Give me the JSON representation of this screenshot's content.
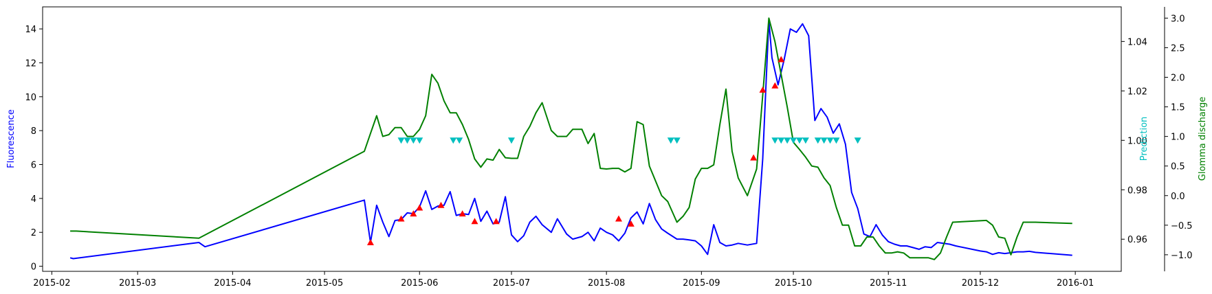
{
  "chart_data": {
    "type": "line",
    "xlabel": "",
    "x_ticks": [
      "2015-02",
      "2015-03",
      "2015-04",
      "2015-05",
      "2015-06",
      "2015-07",
      "2015-08",
      "2015-09",
      "2015-10",
      "2015-11",
      "2015-12",
      "2016-01"
    ],
    "xlim": [
      "2015-01-29",
      "2016-01-16"
    ],
    "axes": {
      "left": {
        "label": "Fluorescence",
        "color": "#0000ff",
        "lim": [
          -0.3,
          15.3
        ],
        "ticks": [
          0,
          2,
          4,
          6,
          8,
          10,
          12,
          14
        ]
      },
      "right1": {
        "label": "Prediction",
        "color": "#00bfbf",
        "lim": [
          0.947,
          1.054
        ],
        "ticks": [
          0.96,
          0.98,
          1.0,
          1.02,
          1.04
        ],
        "tick_labels": [
          "0.96",
          "0.98",
          "1.00",
          "1.02",
          "1.04"
        ]
      },
      "right2": {
        "label": "Glomma discharge",
        "color": "#008000",
        "lim": [
          -1.28,
          3.19
        ],
        "ticks": [
          -1.0,
          -0.5,
          0.0,
          0.5,
          1.0,
          1.5,
          2.0,
          2.5,
          3.0
        ],
        "tick_labels": [
          "−1.0",
          "−0.5",
          "0.0",
          "0.5",
          "1.0",
          "1.5",
          "2.0",
          "2.5",
          "3.0"
        ]
      }
    },
    "series": [
      {
        "axis": "left",
        "color": "#0000ff",
        "style": "line",
        "x": [
          "2015-02-07",
          "2015-02-08",
          "2015-03-21",
          "2015-03-23",
          "2015-05-14",
          "2015-05-16",
          "2015-05-18",
          "2015-05-20",
          "2015-05-22",
          "2015-05-24",
          "2015-05-26",
          "2015-05-28",
          "2015-05-30",
          "2015-06-01",
          "2015-06-03",
          "2015-06-05",
          "2015-06-07",
          "2015-06-09",
          "2015-06-11",
          "2015-06-13",
          "2015-06-15",
          "2015-06-17",
          "2015-06-19",
          "2015-06-21",
          "2015-06-23",
          "2015-06-25",
          "2015-06-27",
          "2015-06-29",
          "2015-07-01",
          "2015-07-03",
          "2015-07-05",
          "2015-07-07",
          "2015-07-09",
          "2015-07-11",
          "2015-07-14",
          "2015-07-16",
          "2015-07-19",
          "2015-07-21",
          "2015-07-24",
          "2015-07-26",
          "2015-07-28",
          "2015-07-30",
          "2015-08-01",
          "2015-08-03",
          "2015-08-05",
          "2015-08-07",
          "2015-08-09",
          "2015-08-11",
          "2015-08-13",
          "2015-08-15",
          "2015-08-17",
          "2015-08-19",
          "2015-08-21",
          "2015-08-24",
          "2015-08-26",
          "2015-08-28",
          "2015-08-30",
          "2015-09-01",
          "2015-09-03",
          "2015-09-05",
          "2015-09-07",
          "2015-09-09",
          "2015-09-11",
          "2015-09-13",
          "2015-09-16",
          "2015-09-19",
          "2015-09-21",
          "2015-09-22",
          "2015-09-23",
          "2015-09-24",
          "2015-09-26",
          "2015-09-28",
          "2015-09-30",
          "2015-10-02",
          "2015-10-04",
          "2015-10-06",
          "2015-10-08",
          "2015-10-10",
          "2015-10-12",
          "2015-10-14",
          "2015-10-16",
          "2015-10-18",
          "2015-10-20",
          "2015-10-22",
          "2015-10-24",
          "2015-10-26",
          "2015-10-28",
          "2015-10-30",
          "2015-11-01",
          "2015-11-03",
          "2015-11-05",
          "2015-11-07",
          "2015-11-09",
          "2015-11-11",
          "2015-11-13",
          "2015-11-15",
          "2015-11-17",
          "2015-11-19",
          "2015-11-21",
          "2015-11-23",
          "2015-12-01",
          "2015-12-03",
          "2015-12-05",
          "2015-12-07",
          "2015-12-09",
          "2015-12-11",
          "2015-12-13",
          "2015-12-15",
          "2015-12-17",
          "2015-12-19",
          "2015-12-31"
        ],
        "y": [
          0.5,
          0.45,
          1.4,
          1.15,
          3.9,
          1.4,
          3.6,
          2.6,
          1.75,
          2.7,
          2.75,
          3.15,
          3.1,
          3.5,
          4.45,
          3.35,
          3.55,
          3.6,
          4.4,
          3.0,
          3.1,
          3.05,
          4.0,
          2.65,
          3.25,
          2.5,
          2.6,
          4.1,
          1.85,
          1.45,
          1.8,
          2.6,
          2.95,
          2.45,
          2.0,
          2.8,
          1.9,
          1.6,
          1.75,
          2.0,
          1.5,
          2.25,
          2.0,
          1.85,
          1.5,
          1.95,
          2.85,
          3.2,
          2.5,
          3.7,
          2.75,
          2.2,
          1.95,
          1.6,
          1.6,
          1.55,
          1.5,
          1.2,
          0.7,
          2.45,
          1.4,
          1.2,
          1.25,
          1.35,
          1.25,
          1.35,
          6.35,
          10.4,
          14.5,
          12.3,
          10.7,
          12.2,
          14.0,
          13.8,
          14.3,
          13.6,
          8.6,
          9.3,
          8.8,
          7.85,
          8.4,
          7.2,
          4.35,
          3.4,
          1.9,
          1.75,
          2.45,
          1.85,
          1.45,
          1.3,
          1.2,
          1.2,
          1.1,
          1.0,
          1.15,
          1.1,
          1.4,
          1.35,
          1.3,
          1.2,
          0.9,
          0.85,
          0.7,
          0.8,
          0.75,
          0.8,
          0.85,
          0.85,
          0.88,
          0.82,
          0.65
        ]
      },
      {
        "axis": "right2",
        "color": "#008000",
        "style": "line",
        "x": [
          "2015-02-07",
          "2015-02-09",
          "2015-03-21",
          "2015-05-14",
          "2015-05-16",
          "2015-05-18",
          "2015-05-20",
          "2015-05-22",
          "2015-05-24",
          "2015-05-26",
          "2015-05-28",
          "2015-05-30",
          "2015-06-01",
          "2015-06-03",
          "2015-06-05",
          "2015-06-07",
          "2015-06-09",
          "2015-06-11",
          "2015-06-13",
          "2015-06-15",
          "2015-06-17",
          "2015-06-19",
          "2015-06-21",
          "2015-06-23",
          "2015-06-25",
          "2015-06-27",
          "2015-06-29",
          "2015-07-01",
          "2015-07-03",
          "2015-07-05",
          "2015-07-07",
          "2015-07-09",
          "2015-07-11",
          "2015-07-14",
          "2015-07-16",
          "2015-07-19",
          "2015-07-21",
          "2015-07-24",
          "2015-07-26",
          "2015-07-28",
          "2015-07-30",
          "2015-08-01",
          "2015-08-03",
          "2015-08-05",
          "2015-08-07",
          "2015-08-09",
          "2015-08-11",
          "2015-08-13",
          "2015-08-15",
          "2015-08-17",
          "2015-08-19",
          "2015-08-21",
          "2015-08-24",
          "2015-08-26",
          "2015-08-28",
          "2015-08-30",
          "2015-09-01",
          "2015-09-03",
          "2015-09-05",
          "2015-09-07",
          "2015-09-09",
          "2015-09-11",
          "2015-09-13",
          "2015-09-16",
          "2015-09-19",
          "2015-09-21",
          "2015-09-23",
          "2015-09-25",
          "2015-09-27",
          "2015-09-29",
          "2015-10-01",
          "2015-10-03",
          "2015-10-05",
          "2015-10-07",
          "2015-10-09",
          "2015-10-11",
          "2015-10-13",
          "2015-10-15",
          "2015-10-17",
          "2015-10-19",
          "2015-10-21",
          "2015-10-23",
          "2015-10-25",
          "2015-10-27",
          "2015-10-29",
          "2015-10-31",
          "2015-11-02",
          "2015-11-04",
          "2015-11-06",
          "2015-11-08",
          "2015-11-10",
          "2015-11-12",
          "2015-11-14",
          "2015-11-16",
          "2015-11-18",
          "2015-11-20",
          "2015-11-22",
          "2015-12-03",
          "2015-12-05",
          "2015-12-07",
          "2015-12-09",
          "2015-12-11",
          "2015-12-13",
          "2015-12-15",
          "2015-12-17",
          "2015-12-19",
          "2015-12-31"
        ],
        "y": [
          -0.6,
          -0.6,
          -0.72,
          0.75,
          1.05,
          1.35,
          1.0,
          1.03,
          1.15,
          1.15,
          1.0,
          1.0,
          1.12,
          1.35,
          2.05,
          1.9,
          1.6,
          1.4,
          1.4,
          1.2,
          0.95,
          0.62,
          0.48,
          0.62,
          0.6,
          0.78,
          0.64,
          0.63,
          0.63,
          1.0,
          1.17,
          1.4,
          1.57,
          1.1,
          1.0,
          1.0,
          1.12,
          1.12,
          0.88,
          1.05,
          0.46,
          0.45,
          0.46,
          0.46,
          0.4,
          0.46,
          1.25,
          1.2,
          0.5,
          0.25,
          0.0,
          -0.1,
          -0.45,
          -0.35,
          -0.2,
          0.28,
          0.46,
          0.46,
          0.52,
          1.2,
          1.8,
          0.75,
          0.3,
          0.0,
          0.45,
          1.7,
          3.0,
          2.6,
          2.05,
          1.5,
          0.9,
          0.78,
          0.65,
          0.5,
          0.48,
          0.3,
          0.17,
          -0.2,
          -0.5,
          -0.5,
          -0.85,
          -0.85,
          -0.7,
          -0.7,
          -0.85,
          -0.97,
          -0.97,
          -0.95,
          -0.97,
          -1.05,
          -1.05,
          -1.05,
          -1.05,
          -1.08,
          -0.97,
          -0.7,
          -0.45,
          -0.42,
          -0.5,
          -0.7,
          -0.72,
          -1.0,
          -0.7,
          -0.45,
          -0.45,
          -0.45,
          -0.47
        ]
      },
      {
        "axis": "left",
        "color": "#ff0000",
        "style": "marker",
        "marker": "triangle-up",
        "x": [
          "2015-05-16",
          "2015-05-26",
          "2015-05-30",
          "2015-06-01",
          "2015-06-08",
          "2015-06-15",
          "2015-06-19",
          "2015-06-26",
          "2015-08-05",
          "2015-08-09",
          "2015-09-18",
          "2015-09-21",
          "2015-09-25",
          "2015-09-27"
        ],
        "y": [
          1.4,
          2.8,
          3.1,
          3.45,
          3.6,
          3.1,
          2.65,
          2.65,
          2.8,
          2.5,
          6.4,
          10.4,
          10.65,
          12.2
        ]
      },
      {
        "axis": "right1",
        "color": "#00bfbf",
        "style": "marker",
        "marker": "triangle-down",
        "x": [
          "2015-05-26",
          "2015-05-28",
          "2015-05-30",
          "2015-06-01",
          "2015-06-12",
          "2015-06-14",
          "2015-07-01",
          "2015-08-22",
          "2015-08-24",
          "2015-09-25",
          "2015-09-27",
          "2015-09-29",
          "2015-10-01",
          "2015-10-03",
          "2015-10-05",
          "2015-10-09",
          "2015-10-11",
          "2015-10-13",
          "2015-10-15",
          "2015-10-22"
        ],
        "y": [
          1,
          1,
          1,
          1,
          1,
          1,
          1,
          1,
          1,
          1,
          1,
          1,
          1,
          1,
          1,
          1,
          1,
          1,
          1,
          1
        ]
      }
    ]
  }
}
